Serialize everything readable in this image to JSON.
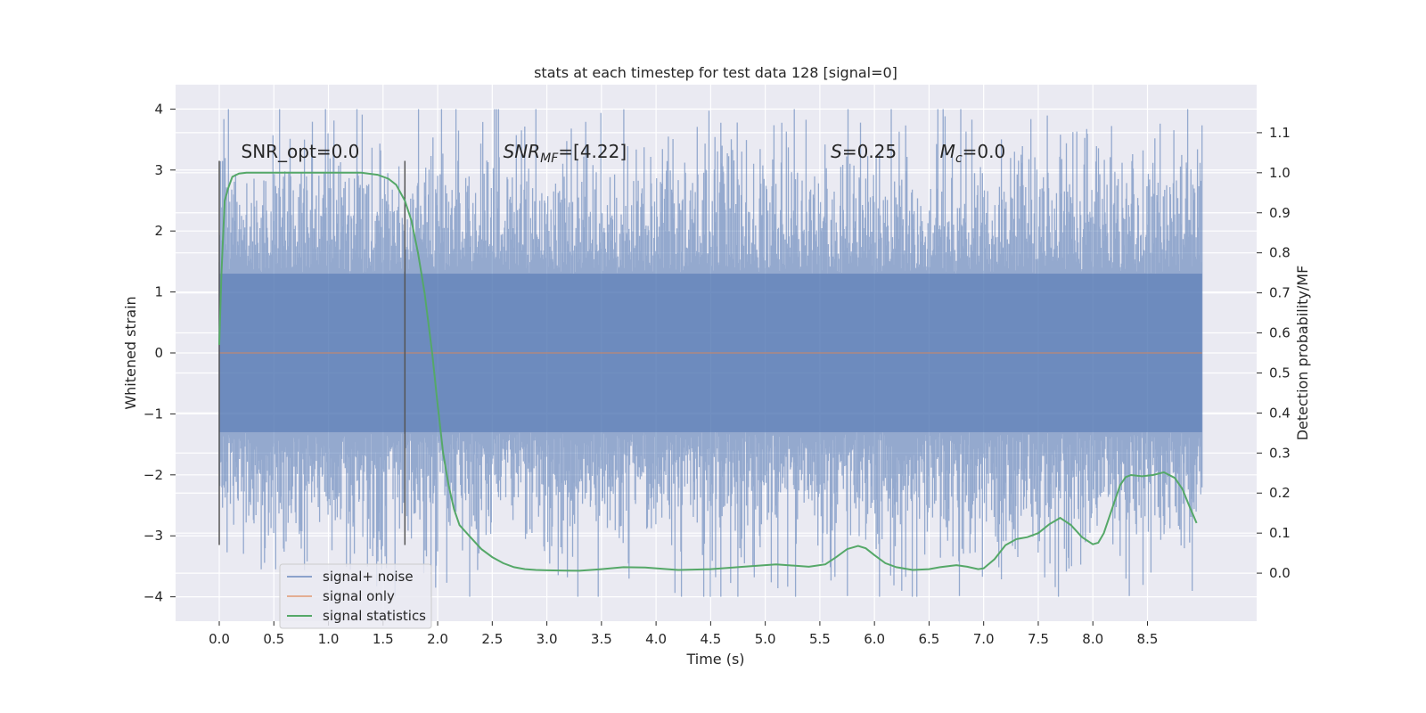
{
  "chart_data": {
    "type": "line",
    "title": "stats at each timestep for test data 128 [signal=0]",
    "xlabel": "Time (s)",
    "ylabel": "Whitened strain",
    "y2label": "Detection probability/MF",
    "xlim": [
      -0.4,
      9.5
    ],
    "ylim": [
      -4.4,
      4.4
    ],
    "y2lim": [
      -0.12,
      1.22
    ],
    "grid": true,
    "x_ticks": [
      0.0,
      0.5,
      1.0,
      1.5,
      2.0,
      2.5,
      3.0,
      3.5,
      4.0,
      4.5,
      5.0,
      5.5,
      6.0,
      6.5,
      7.0,
      7.5,
      8.0,
      8.5
    ],
    "x_tick_labels": [
      "0.0",
      "0.5",
      "1.0",
      "1.5",
      "2.0",
      "2.5",
      "3.0",
      "3.5",
      "4.0",
      "4.5",
      "5.0",
      "5.5",
      "6.0",
      "6.5",
      "7.0",
      "7.5",
      "8.0",
      "8.5"
    ],
    "y_ticks": [
      4,
      3,
      2,
      1,
      0,
      -1,
      -2,
      -3,
      -4
    ],
    "y_tick_labels": [
      "4",
      "3",
      "2",
      "1",
      "0",
      "−1",
      "−2",
      "−3",
      "−4"
    ],
    "y2_ticks": [
      1.1,
      1.0,
      0.9,
      0.8,
      0.7,
      0.6,
      0.5,
      0.4,
      0.3,
      0.2,
      0.1,
      0.0
    ],
    "y2_tick_labels": [
      "1.1",
      "1.0",
      "0.9",
      "0.8",
      "0.7",
      "0.6",
      "0.5",
      "0.4",
      "0.3",
      "0.2",
      "0.1",
      "0.0"
    ],
    "vlines": [
      {
        "x": 0.0,
        "y": [
          -3.15,
          3.15
        ]
      },
      {
        "x": 1.7,
        "y": [
          -3.15,
          3.15
        ]
      }
    ],
    "annotations": [
      {
        "text": "SNR_opt=0.0",
        "x": 0.2,
        "y": 3.2
      },
      {
        "text": "SNR",
        "sub": "MF",
        "tail": "=[4.22]",
        "italic_head": true,
        "x": 2.6,
        "y": 3.2
      },
      {
        "text": "S",
        "tail": "=0.25",
        "italic_head": true,
        "x": 5.6,
        "y": 3.2
      },
      {
        "text": "M",
        "sub": "c",
        "tail": "=0.0",
        "italic_head": true,
        "x": 6.6,
        "y": 3.2
      }
    ],
    "series": [
      {
        "name": "signal+ noise",
        "color": "#4c72b0",
        "kind": "noise",
        "x_range": [
          0.0,
          9.0
        ],
        "envelope": 1.3,
        "extreme_min": -4.0,
        "extreme_max": 4.0
      },
      {
        "name": "signal only",
        "color": "#dd8452",
        "kind": "flat",
        "x": [
          0.0,
          9.0
        ],
        "y": [
          0.0,
          0.0
        ]
      },
      {
        "name": "signal statistics",
        "color": "#55a868",
        "kind": "line",
        "axis": "right",
        "x": [
          0.0,
          0.02,
          0.05,
          0.08,
          0.12,
          0.18,
          0.25,
          0.35,
          0.5,
          0.7,
          0.9,
          1.1,
          1.3,
          1.45,
          1.55,
          1.62,
          1.7,
          1.76,
          1.82,
          1.88,
          1.95,
          2.0,
          2.05,
          2.1,
          2.15,
          2.2,
          2.3,
          2.4,
          2.5,
          2.6,
          2.7,
          2.8,
          2.9,
          3.0,
          3.3,
          3.5,
          3.7,
          3.9,
          4.2,
          4.5,
          4.8,
          5.0,
          5.1,
          5.2,
          5.4,
          5.55,
          5.65,
          5.75,
          5.85,
          5.92,
          6.0,
          6.1,
          6.2,
          6.35,
          6.5,
          6.6,
          6.75,
          6.85,
          6.95,
          7.0,
          7.1,
          7.2,
          7.3,
          7.4,
          7.5,
          7.6,
          7.7,
          7.8,
          7.9,
          8.0,
          8.05,
          8.1,
          8.15,
          8.2,
          8.25,
          8.3,
          8.35,
          8.45,
          8.55,
          8.65,
          8.75,
          8.82,
          8.88,
          8.95
        ],
        "y": [
          0.57,
          0.75,
          0.93,
          0.96,
          0.99,
          0.998,
          1.0,
          1.0,
          1.0,
          1.0,
          1.0,
          1.0,
          1.0,
          0.995,
          0.985,
          0.97,
          0.93,
          0.88,
          0.8,
          0.7,
          0.55,
          0.42,
          0.3,
          0.22,
          0.16,
          0.12,
          0.09,
          0.06,
          0.04,
          0.025,
          0.015,
          0.01,
          0.008,
          0.007,
          0.006,
          0.01,
          0.015,
          0.014,
          0.008,
          0.01,
          0.016,
          0.02,
          0.022,
          0.02,
          0.016,
          0.022,
          0.04,
          0.06,
          0.068,
          0.062,
          0.045,
          0.025,
          0.015,
          0.008,
          0.01,
          0.015,
          0.02,
          0.016,
          0.01,
          0.012,
          0.035,
          0.07,
          0.085,
          0.09,
          0.1,
          0.122,
          0.138,
          0.12,
          0.09,
          0.072,
          0.076,
          0.1,
          0.14,
          0.18,
          0.22,
          0.24,
          0.245,
          0.242,
          0.245,
          0.252,
          0.238,
          0.21,
          0.17,
          0.125
        ]
      }
    ],
    "legend": {
      "placement": "lower-left",
      "entries": [
        {
          "label": "signal+ noise",
          "color": "#4c72b0"
        },
        {
          "label": "signal only",
          "color": "#dd8452"
        },
        {
          "label": "signal statistics",
          "color": "#55a868"
        }
      ]
    }
  }
}
